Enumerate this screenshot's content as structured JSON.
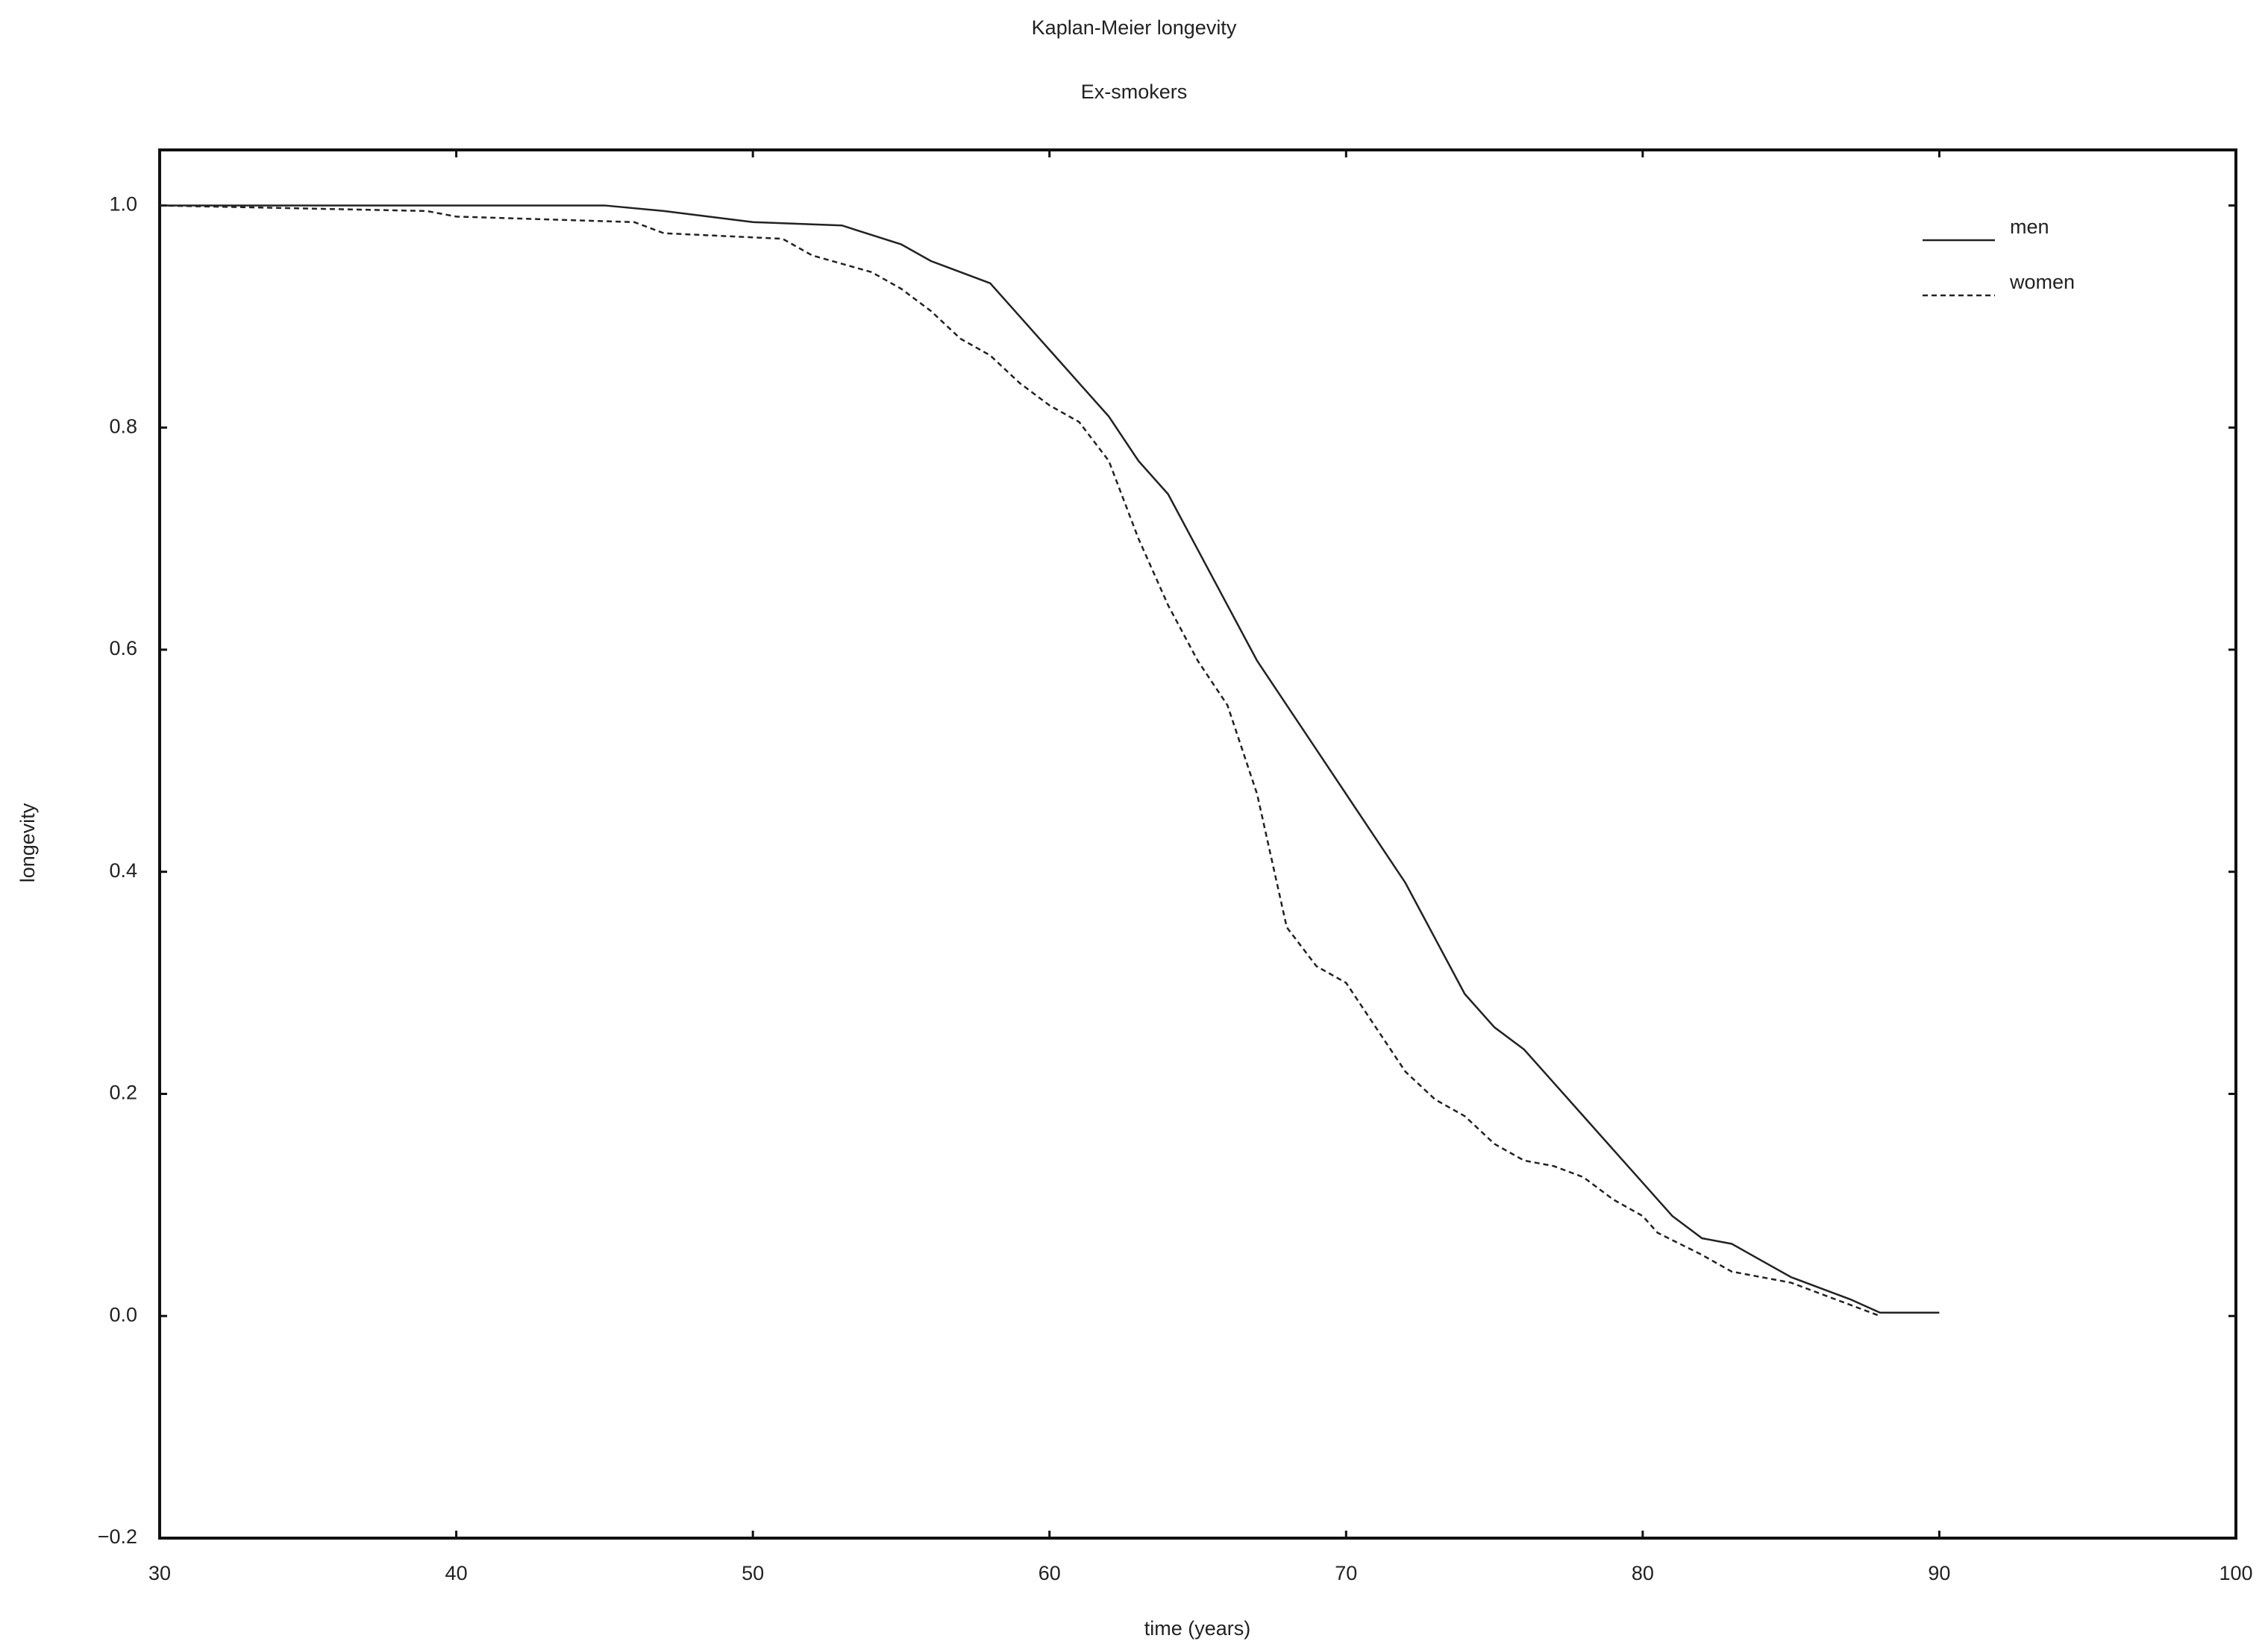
{
  "chart_data": {
    "type": "line",
    "title": "Kaplan-Meier longevity",
    "subtitle": "Ex-smokers",
    "x_label": "time (years)",
    "y_label": "longevity",
    "xlim": [
      30,
      100
    ],
    "xticks": [
      30,
      40,
      50,
      60,
      70,
      80,
      90,
      100
    ],
    "ylim": [
      -0.2,
      1.05
    ],
    "yticks": [
      {
        "value": -0.2,
        "label": "−0.2"
      },
      {
        "value": 0,
        "label": "0.0"
      },
      0.2,
      0.4,
      0.6,
      0.8,
      {
        "value": 1,
        "label": "1.0"
      }
    ],
    "legend_position": "upper right",
    "series": [
      {
        "name": "men",
        "color": "#222222",
        "dash": "solid",
        "x": [
          30,
          45,
          47,
          50,
          53,
          55,
          56,
          58,
          59,
          60,
          61,
          62,
          63,
          64,
          65,
          66,
          67,
          68,
          69,
          70,
          71,
          72,
          73,
          74,
          75,
          76,
          77,
          78,
          79,
          80,
          80.5,
          81,
          82,
          83,
          84,
          85,
          86,
          87,
          88,
          90
        ],
        "values": [
          1.0,
          1.0,
          0.995,
          0.985,
          0.982,
          0.965,
          0.95,
          0.93,
          0.9,
          0.87,
          0.84,
          0.81,
          0.77,
          0.74,
          0.69,
          0.64,
          0.59,
          0.55,
          0.51,
          0.47,
          0.43,
          0.39,
          0.34,
          0.29,
          0.26,
          0.24,
          0.21,
          0.18,
          0.15,
          0.12,
          0.105,
          0.09,
          0.07,
          0.065,
          0.05,
          0.035,
          0.025,
          0.015,
          0.003,
          0.003
        ]
      },
      {
        "name": "women",
        "color": "#222222",
        "dash": "dashed",
        "x": [
          30,
          39,
          40,
          46,
          47,
          51,
          52,
          54,
          55,
          56,
          57,
          58,
          59,
          60,
          61,
          62,
          63,
          64,
          65,
          66,
          67,
          68,
          69,
          70,
          71,
          72,
          73,
          74,
          75,
          76,
          77,
          78,
          79,
          80,
          80.5,
          82,
          83,
          84,
          85,
          86,
          87,
          88
        ],
        "values": [
          1.0,
          0.995,
          0.99,
          0.985,
          0.975,
          0.97,
          0.955,
          0.94,
          0.925,
          0.905,
          0.88,
          0.865,
          0.84,
          0.82,
          0.805,
          0.77,
          0.7,
          0.64,
          0.59,
          0.55,
          0.47,
          0.35,
          0.315,
          0.3,
          0.26,
          0.22,
          0.195,
          0.18,
          0.155,
          0.14,
          0.135,
          0.125,
          0.105,
          0.09,
          0.075,
          0.055,
          0.04,
          0.035,
          0.03,
          0.02,
          0.01,
          0.0
        ]
      }
    ]
  }
}
